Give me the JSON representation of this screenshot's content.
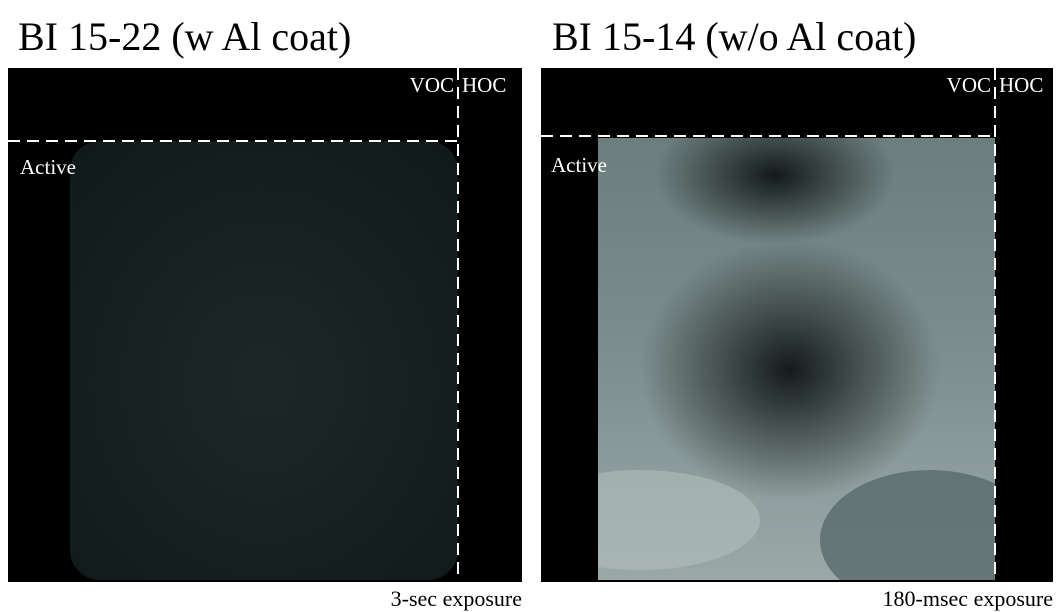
{
  "panels": [
    {
      "title": "BI 15-22 (w Al coat)",
      "labels": {
        "voc": "VOC",
        "hoc": "HOC",
        "active": "Active"
      },
      "caption": "3-sec exposure"
    },
    {
      "title": "BI 15-14 (w/o Al coat)",
      "labels": {
        "voc": "VOC",
        "hoc": "HOC",
        "active": "Active"
      },
      "caption": "180-msec exposure"
    }
  ]
}
